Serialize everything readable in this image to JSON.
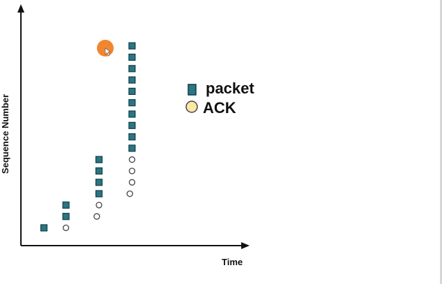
{
  "chart_data": {
    "type": "scatter",
    "xlabel": "Time",
    "ylabel": "Sequence Number",
    "xlim": [
      0,
      10
    ],
    "ylim": [
      0,
      20
    ],
    "grid": false,
    "legend_placement": "top-right",
    "legend": [
      {
        "name": "packet",
        "marker": "square",
        "color": "#2a7682",
        "stroke": "#0f3e46"
      },
      {
        "name": "ACK",
        "marker": "circle",
        "color": "#fbe7a6",
        "stroke": "#444444"
      }
    ],
    "series": [
      {
        "name": "packet",
        "marker": "square",
        "x": [
          1,
          2,
          2,
          3.5,
          3.5,
          3.5,
          3.5,
          5,
          5,
          5,
          5,
          5,
          5,
          5,
          5,
          5,
          5
        ],
        "y": [
          1,
          2,
          3,
          4,
          5,
          6,
          7,
          8,
          9,
          10,
          11,
          12,
          13,
          14,
          15,
          16,
          17
        ]
      },
      {
        "name": "ACK",
        "marker": "circle",
        "x": [
          2,
          3.4,
          3.5,
          4.9,
          5,
          5,
          5
        ],
        "y": [
          1,
          2,
          3,
          4,
          5,
          6,
          7
        ]
      }
    ],
    "cursor_color": "#f2862f"
  }
}
